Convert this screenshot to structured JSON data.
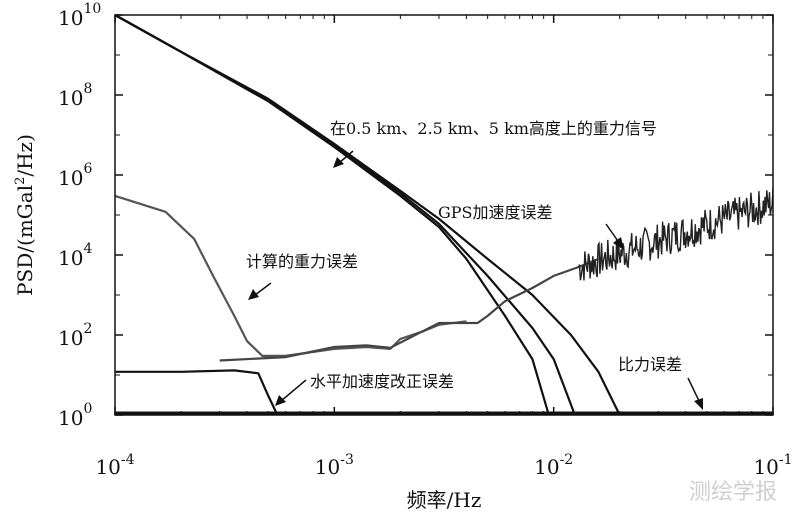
{
  "chart_data": {
    "type": "line",
    "title": "",
    "xlabel": "频率/Hz",
    "ylabel_parts": {
      "prefix": "PSD/(mGal",
      "sup": "2",
      "suffix": "/Hz)"
    },
    "xscale": "log",
    "yscale": "log",
    "xlim": [
      0.0001,
      0.1
    ],
    "ylim": [
      1,
      10000000000
    ],
    "x_ticks": [
      {
        "value": 0.0001,
        "base": "10",
        "exp": "-4"
      },
      {
        "value": 0.001,
        "base": "10",
        "exp": "-3"
      },
      {
        "value": 0.01,
        "base": "10",
        "exp": "-2"
      },
      {
        "value": 0.1,
        "base": "10",
        "exp": "-1"
      }
    ],
    "y_ticks": [
      {
        "value": 1,
        "base": "10",
        "exp": "0"
      },
      {
        "value": 100,
        "base": "10",
        "exp": "2"
      },
      {
        "value": 10000,
        "base": "10",
        "exp": "4"
      },
      {
        "value": 1000000,
        "base": "10",
        "exp": "6"
      },
      {
        "value": 100000000,
        "base": "10",
        "exp": "8"
      },
      {
        "value": 10000000000,
        "base": "10",
        "exp": "10"
      }
    ],
    "grid": false,
    "series": [
      {
        "key": "gravity_05km",
        "color": "#111111",
        "points": [
          [
            0.0001,
            10000000000.0
          ],
          [
            0.0002,
            1200000000.0
          ],
          [
            0.0005,
            70000000.0
          ],
          [
            0.001,
            5000000.0
          ],
          [
            0.002,
            300000.0
          ],
          [
            0.003,
            50000.0
          ],
          [
            0.004,
            8000.0
          ],
          [
            0.006,
            300
          ],
          [
            0.008,
            25
          ],
          [
            0.0095,
            1
          ]
        ]
      },
      {
        "key": "gravity_25km",
        "color": "#111111",
        "points": [
          [
            0.0001,
            10000000000.0
          ],
          [
            0.0002,
            1200000000.0
          ],
          [
            0.0005,
            70000000.0
          ],
          [
            0.001,
            5500000.0
          ],
          [
            0.002,
            350000.0
          ],
          [
            0.003,
            60000.0
          ],
          [
            0.005,
            3000.0
          ],
          [
            0.008,
            150
          ],
          [
            0.01,
            25
          ],
          [
            0.0125,
            1
          ]
        ]
      },
      {
        "key": "gravity_5km",
        "color": "#111111",
        "points": [
          [
            0.0001,
            10000000000.0
          ],
          [
            0.0002,
            1200000000.0
          ],
          [
            0.0005,
            80000000.0
          ],
          [
            0.001,
            6000000.0
          ],
          [
            0.002,
            400000.0
          ],
          [
            0.003,
            80000.0
          ],
          [
            0.005,
            8000.0
          ],
          [
            0.008,
            1000.0
          ],
          [
            0.012,
            100
          ],
          [
            0.016,
            12
          ],
          [
            0.02,
            1
          ]
        ]
      },
      {
        "key": "computed_gravity_error",
        "color": "#555555",
        "points": [
          [
            0.0001,
            300000.0
          ],
          [
            0.00017,
            120000.0
          ],
          [
            0.00023,
            25000.0
          ],
          [
            0.00028,
            3000.0
          ],
          [
            0.00035,
            300
          ],
          [
            0.0004,
            70
          ],
          [
            0.00047,
            30
          ],
          [
            0.0006,
            30
          ],
          [
            0.001,
            45
          ],
          [
            0.0014,
            50
          ],
          [
            0.0018,
            45
          ],
          [
            0.002,
            80
          ],
          [
            0.0025,
            120
          ],
          [
            0.003,
            180
          ],
          [
            0.004,
            220
          ]
        ]
      },
      {
        "key": "horizontal_accel_error",
        "color": "#111111",
        "points": [
          [
            0.0001,
            12
          ],
          [
            0.0002,
            12
          ],
          [
            0.00035,
            13
          ],
          [
            0.00045,
            11
          ],
          [
            0.0005,
            3
          ],
          [
            0.00055,
            1
          ]
        ]
      },
      {
        "key": "gps_accel_error_rise",
        "color": "#444444",
        "points": [
          [
            0.0003,
            23
          ],
          [
            0.0006,
            28
          ],
          [
            0.001,
            50
          ],
          [
            0.0014,
            55
          ],
          [
            0.0018,
            48
          ],
          [
            0.0025,
            120
          ],
          [
            0.003,
            200
          ],
          [
            0.0045,
            200
          ],
          [
            0.005,
            300
          ],
          [
            0.006,
            700
          ],
          [
            0.008,
            1500
          ],
          [
            0.01,
            3000
          ],
          [
            0.013,
            5000
          ],
          [
            0.016,
            8000
          ]
        ]
      }
    ],
    "noisy_series": {
      "key": "gps_accel_error_noise",
      "color": "#222222",
      "x_start": 0.013,
      "x_end": 0.1,
      "y_start": 5000,
      "y_end": 200000
    },
    "specific_force_error": {
      "key": "specific_force_error",
      "color": "#111111",
      "value": 1
    },
    "annotations": [
      {
        "key": "ann_gravity_signal",
        "text": "在0.5 km、2.5 km、5 km高度上的重力信号"
      },
      {
        "key": "ann_gps_accel",
        "text": "GPS加速度误差"
      },
      {
        "key": "ann_computed_gravity",
        "text": "计算的重力误差"
      },
      {
        "key": "ann_horizontal_accel",
        "text": "水平加速度改正误差"
      },
      {
        "key": "ann_specific_force",
        "text": "比力误差"
      }
    ]
  },
  "watermark": "测绘学报"
}
